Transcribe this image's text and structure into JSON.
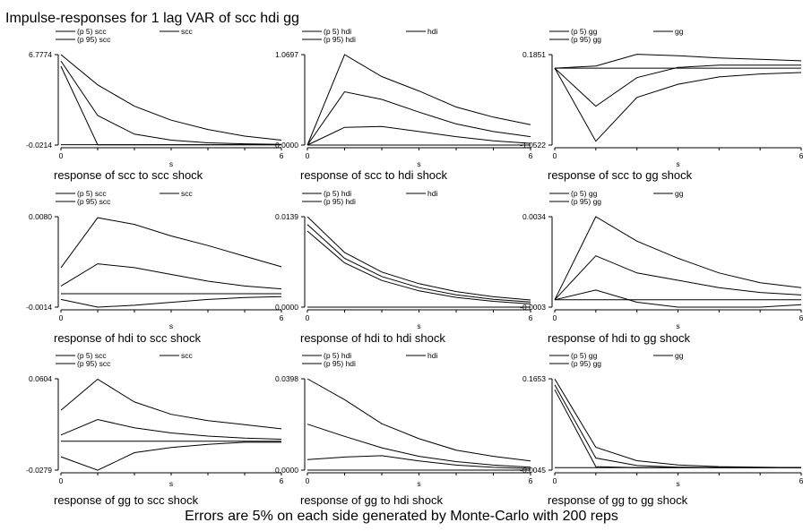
{
  "title": "Impulse-responses for 1 lag VAR of scc hdi gg",
  "footer": "Errors are 5% on each side generated by Monte-Carlo with 200 reps",
  "chart_data": [
    {
      "type": "line",
      "xlabel": "s",
      "caption": "response of scc to scc shock",
      "legend": [
        "(p 5) scc",
        "scc",
        "(p 95) scc"
      ],
      "yticks": [
        "6.7774",
        "-0.0214"
      ],
      "xticks": [
        "0",
        "6"
      ],
      "ylim": [
        -0.0214,
        6.7774
      ],
      "x": [
        0,
        1,
        2,
        3,
        4,
        5,
        6
      ],
      "series": [
        {
          "name": "(p 5) scc",
          "values": [
            5.9,
            0.0,
            0.0,
            0.0,
            0.0,
            0.0,
            0.0
          ]
        },
        {
          "name": "scc",
          "values": [
            6.3,
            2.2,
            0.8,
            0.35,
            0.15,
            0.07,
            0.03
          ]
        },
        {
          "name": "(p 95) scc",
          "values": [
            6.78,
            4.5,
            2.9,
            1.85,
            1.15,
            0.65,
            0.35
          ]
        }
      ],
      "zero": 0
    },
    {
      "type": "line",
      "xlabel": "s",
      "caption": "response of scc to hdi shock",
      "legend": [
        "(p 5) hdi",
        "hdi",
        "(p 95) hdi"
      ],
      "yticks": [
        "1.0697",
        "0.0000"
      ],
      "xticks": [
        "0",
        "6"
      ],
      "ylim": [
        0,
        1.0697
      ],
      "x": [
        0,
        1,
        2,
        3,
        4,
        5,
        6
      ],
      "series": [
        {
          "name": "(p 5) hdi",
          "values": [
            0.0,
            0.21,
            0.22,
            0.16,
            0.1,
            0.05,
            0.02
          ]
        },
        {
          "name": "hdi",
          "values": [
            0.0,
            0.63,
            0.54,
            0.39,
            0.25,
            0.16,
            0.1
          ]
        },
        {
          "name": "(p 95) hdi",
          "values": [
            0.0,
            1.07,
            0.81,
            0.64,
            0.45,
            0.33,
            0.24
          ]
        }
      ],
      "zero": 0
    },
    {
      "type": "line",
      "xlabel": "s",
      "caption": "response of scc to gg shock",
      "legend": [
        "(p 5) gg",
        "gg",
        "(p 95) gg"
      ],
      "yticks": [
        "0.1851",
        "-1.0522"
      ],
      "xticks": [
        "0",
        "6"
      ],
      "ylim": [
        -1.0522,
        0.1851
      ],
      "x": [
        0,
        1,
        2,
        3,
        4,
        5,
        6
      ],
      "series": [
        {
          "name": "(p 5) gg",
          "values": [
            0.0,
            -1.0,
            -0.4,
            -0.22,
            -0.12,
            -0.08,
            -0.06
          ]
        },
        {
          "name": "gg",
          "values": [
            0.0,
            -0.52,
            -0.13,
            0.01,
            0.04,
            0.04,
            0.04
          ]
        },
        {
          "name": "(p 95) gg",
          "values": [
            0.0,
            0.03,
            0.19,
            0.17,
            0.14,
            0.12,
            0.1
          ]
        }
      ],
      "zero": 0
    },
    {
      "type": "line",
      "xlabel": "s",
      "caption": "response of hdi to scc shock",
      "legend": [
        "(p 5) scc",
        "scc",
        "(p 95) scc"
      ],
      "yticks": [
        "0.0080",
        "-0.0014"
      ],
      "xticks": [
        "0",
        "6"
      ],
      "ylim": [
        -0.0014,
        0.008
      ],
      "x": [
        0,
        1,
        2,
        3,
        4,
        5,
        6
      ],
      "series": [
        {
          "name": "(p 5) scc",
          "values": [
            -0.0006,
            -0.0014,
            -0.0012,
            -0.0009,
            -0.0006,
            -0.0004,
            -0.0003
          ]
        },
        {
          "name": "scc",
          "values": [
            0.0008,
            0.0031,
            0.0027,
            0.002,
            0.0013,
            0.0008,
            0.0005
          ]
        },
        {
          "name": "(p 95) scc",
          "values": [
            0.0027,
            0.0079,
            0.0072,
            0.006,
            0.005,
            0.0039,
            0.0028
          ]
        }
      ],
      "zero": 0
    },
    {
      "type": "line",
      "xlabel": "s",
      "caption": "response of hdi to hdi shock",
      "legend": [
        "(p 5) hdi",
        "hdi",
        "(p 95) hdi"
      ],
      "yticks": [
        "0.0139",
        "0.0000"
      ],
      "xticks": [
        "0",
        "6"
      ],
      "ylim": [
        0,
        0.0139
      ],
      "x": [
        0,
        1,
        2,
        3,
        4,
        5,
        6
      ],
      "series": [
        {
          "name": "(p 5) hdi",
          "values": [
            0.0117,
            0.0068,
            0.0041,
            0.0025,
            0.0015,
            0.0009,
            0.0005
          ]
        },
        {
          "name": "hdi",
          "values": [
            0.0127,
            0.0075,
            0.0047,
            0.003,
            0.0019,
            0.0012,
            0.0008
          ]
        },
        {
          "name": "(p 95) hdi",
          "values": [
            0.0139,
            0.0084,
            0.0054,
            0.0036,
            0.0024,
            0.0016,
            0.0011
          ]
        }
      ],
      "zero": 0
    },
    {
      "type": "line",
      "xlabel": "s",
      "caption": "response of hdi to gg shock",
      "legend": [
        "(p 5) gg",
        "gg",
        "(p 95) gg"
      ],
      "yticks": [
        "0.0034",
        "-0.0003"
      ],
      "xticks": [
        "0",
        "6"
      ],
      "ylim": [
        -0.0003,
        0.0034
      ],
      "x": [
        0,
        1,
        2,
        3,
        4,
        5,
        6
      ],
      "series": [
        {
          "name": "(p 5) gg",
          "values": [
            0.0,
            0.0004,
            -0.0001,
            -0.0003,
            -0.0003,
            -0.0003,
            -0.0002
          ]
        },
        {
          "name": "gg",
          "values": [
            0.0,
            0.0018,
            0.0011,
            0.0008,
            0.0005,
            0.0003,
            0.0002
          ]
        },
        {
          "name": "(p 95) gg",
          "values": [
            0.0,
            0.0034,
            0.0024,
            0.0017,
            0.0011,
            0.0007,
            0.0005
          ]
        }
      ],
      "zero": 0
    },
    {
      "type": "line",
      "xlabel": "s",
      "caption": "response of gg to scc shock",
      "legend": [
        "(p 5) scc",
        "scc",
        "(p 95) scc"
      ],
      "yticks": [
        "0.0604",
        "-0.0279"
      ],
      "xticks": [
        "0",
        "6"
      ],
      "ylim": [
        -0.0279,
        0.0604
      ],
      "x": [
        0,
        1,
        2,
        3,
        4,
        5,
        6
      ],
      "series": [
        {
          "name": "(p 5) scc",
          "values": [
            -0.015,
            -0.028,
            -0.011,
            -0.006,
            -0.003,
            -0.001,
            -0.001
          ]
        },
        {
          "name": "scc",
          "values": [
            0.006,
            0.021,
            0.013,
            0.008,
            0.005,
            0.003,
            0.002
          ]
        },
        {
          "name": "(p 95) scc",
          "values": [
            0.03,
            0.06,
            0.038,
            0.026,
            0.02,
            0.016,
            0.012
          ]
        }
      ],
      "zero": 0
    },
    {
      "type": "line",
      "xlabel": "s",
      "caption": "response of gg to hdi shock",
      "legend": [
        "(p 5) hdi",
        "hdi",
        "(p 95) hdi"
      ],
      "yticks": [
        "0.0398",
        "0.0000"
      ],
      "xticks": [
        "0",
        "6"
      ],
      "ylim": [
        0,
        0.0398
      ],
      "x": [
        0,
        1,
        2,
        3,
        4,
        5,
        6
      ],
      "series": [
        {
          "name": "(p 5) hdi",
          "values": [
            0.0046,
            0.0057,
            0.0063,
            0.004,
            0.0022,
            0.0012,
            0.0007
          ]
        },
        {
          "name": "hdi",
          "values": [
            0.02,
            0.0147,
            0.0097,
            0.006,
            0.0037,
            0.0022,
            0.0013
          ]
        },
        {
          "name": "(p 95) hdi",
          "values": [
            0.0398,
            0.0307,
            0.0202,
            0.0137,
            0.0087,
            0.006,
            0.004
          ]
        }
      ],
      "zero": 0
    },
    {
      "type": "line",
      "xlabel": "s",
      "caption": "response of gg to gg shock",
      "legend": [
        "(p 5) gg",
        "gg",
        "(p 95) gg"
      ],
      "yticks": [
        "0.1653",
        "-0.0045"
      ],
      "xticks": [
        "0",
        "6"
      ],
      "ylim": [
        -0.0045,
        0.1653
      ],
      "x": [
        0,
        1,
        2,
        3,
        4,
        5,
        6
      ],
      "series": [
        {
          "name": "(p 5) gg",
          "values": [
            0.145,
            0.002,
            0.0,
            0.0,
            0.0,
            0.0,
            0.0
          ]
        },
        {
          "name": "gg",
          "values": [
            0.154,
            0.018,
            0.004,
            0.001,
            0.0,
            0.0,
            0.0
          ]
        },
        {
          "name": "(p 95) gg",
          "values": [
            0.165,
            0.038,
            0.013,
            0.005,
            0.002,
            0.001,
            0.0
          ]
        }
      ],
      "zero": 0
    }
  ]
}
